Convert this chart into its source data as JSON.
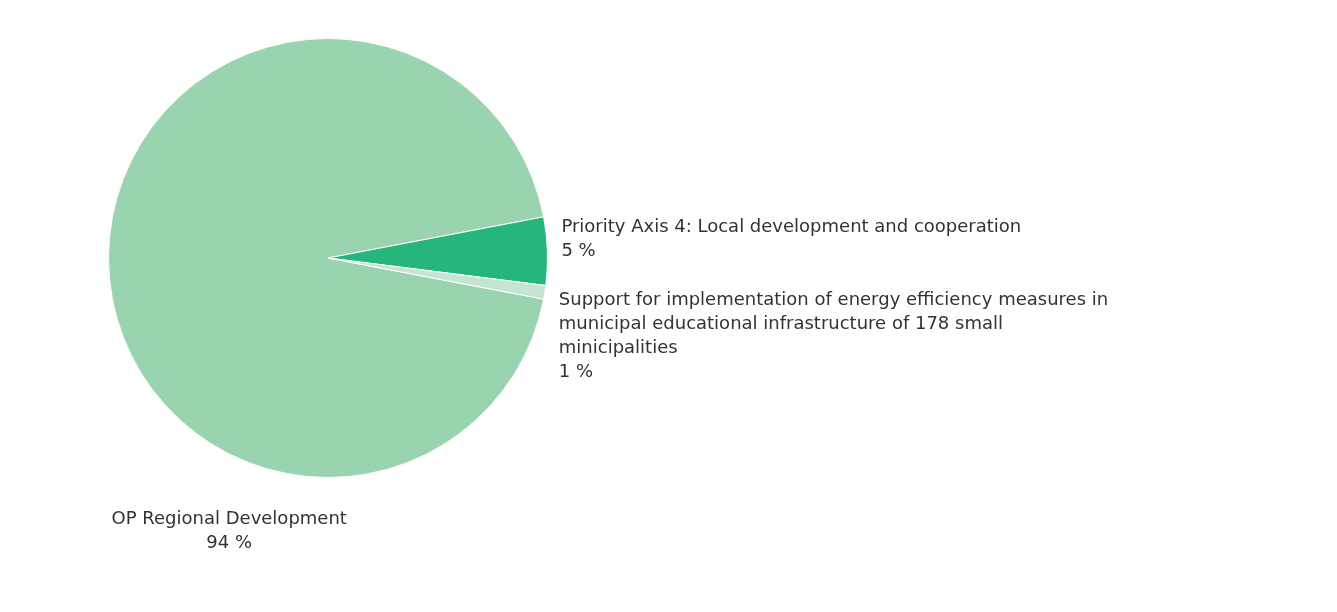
{
  "chart_data": {
    "type": "pie",
    "categories": [
      "OP Regional Development",
      "Priority Axis 4: Local development and cooperation",
      "Support for implementation of energy efficiency measures in municipal educational infrastructure of 178 small minicipalities"
    ],
    "values": [
      94,
      5,
      1
    ],
    "colors": [
      "#9ad3b0",
      "#26b57a",
      "#c5e4d3"
    ],
    "value_labels": [
      "94 %",
      "5 %",
      "1 %"
    ],
    "legend": false
  }
}
